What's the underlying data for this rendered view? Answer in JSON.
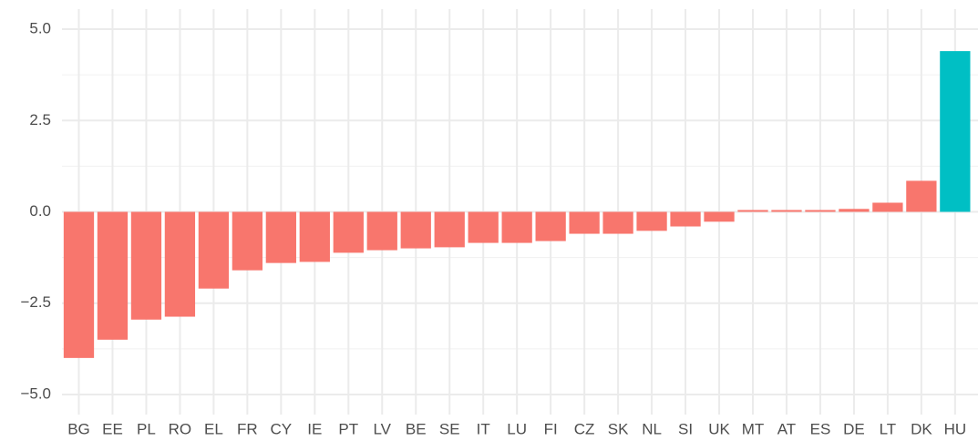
{
  "chart_data": {
    "type": "bar",
    "categories": [
      "BG",
      "EE",
      "PL",
      "RO",
      "EL",
      "FR",
      "CY",
      "IE",
      "PT",
      "LV",
      "BE",
      "SE",
      "IT",
      "LU",
      "FI",
      "CZ",
      "SK",
      "NL",
      "SI",
      "UK",
      "MT",
      "AT",
      "ES",
      "DE",
      "LT",
      "DK",
      "HU"
    ],
    "values": [
      -4.0,
      -3.5,
      -2.95,
      -2.87,
      -2.1,
      -1.6,
      -1.4,
      -1.37,
      -1.12,
      -1.05,
      -1.0,
      -0.97,
      -0.85,
      -0.85,
      -0.8,
      -0.6,
      -0.6,
      -0.52,
      -0.4,
      -0.27,
      0.05,
      0.05,
      0.05,
      0.08,
      0.25,
      0.85,
      4.4
    ],
    "colors": [
      "#f8766d",
      "#f8766d",
      "#f8766d",
      "#f8766d",
      "#f8766d",
      "#f8766d",
      "#f8766d",
      "#f8766d",
      "#f8766d",
      "#f8766d",
      "#f8766d",
      "#f8766d",
      "#f8766d",
      "#f8766d",
      "#f8766d",
      "#f8766d",
      "#f8766d",
      "#f8766d",
      "#f8766d",
      "#f8766d",
      "#f8766d",
      "#f8766d",
      "#f8766d",
      "#f8766d",
      "#f8766d",
      "#f8766d",
      "#00bfc4"
    ],
    "ylim": [
      -5.55,
      5.55
    ],
    "yticks": [
      {
        "value": -5,
        "label": "−5.0"
      },
      {
        "value": -2.5,
        "label": "−2.5"
      },
      {
        "value": 0,
        "label": "0.0"
      },
      {
        "value": 2.5,
        "label": "2.5"
      },
      {
        "value": 5,
        "label": "5.0"
      }
    ],
    "minor_yticks": [
      -3.75,
      -1.25,
      1.25,
      3.75
    ],
    "grid": true
  }
}
